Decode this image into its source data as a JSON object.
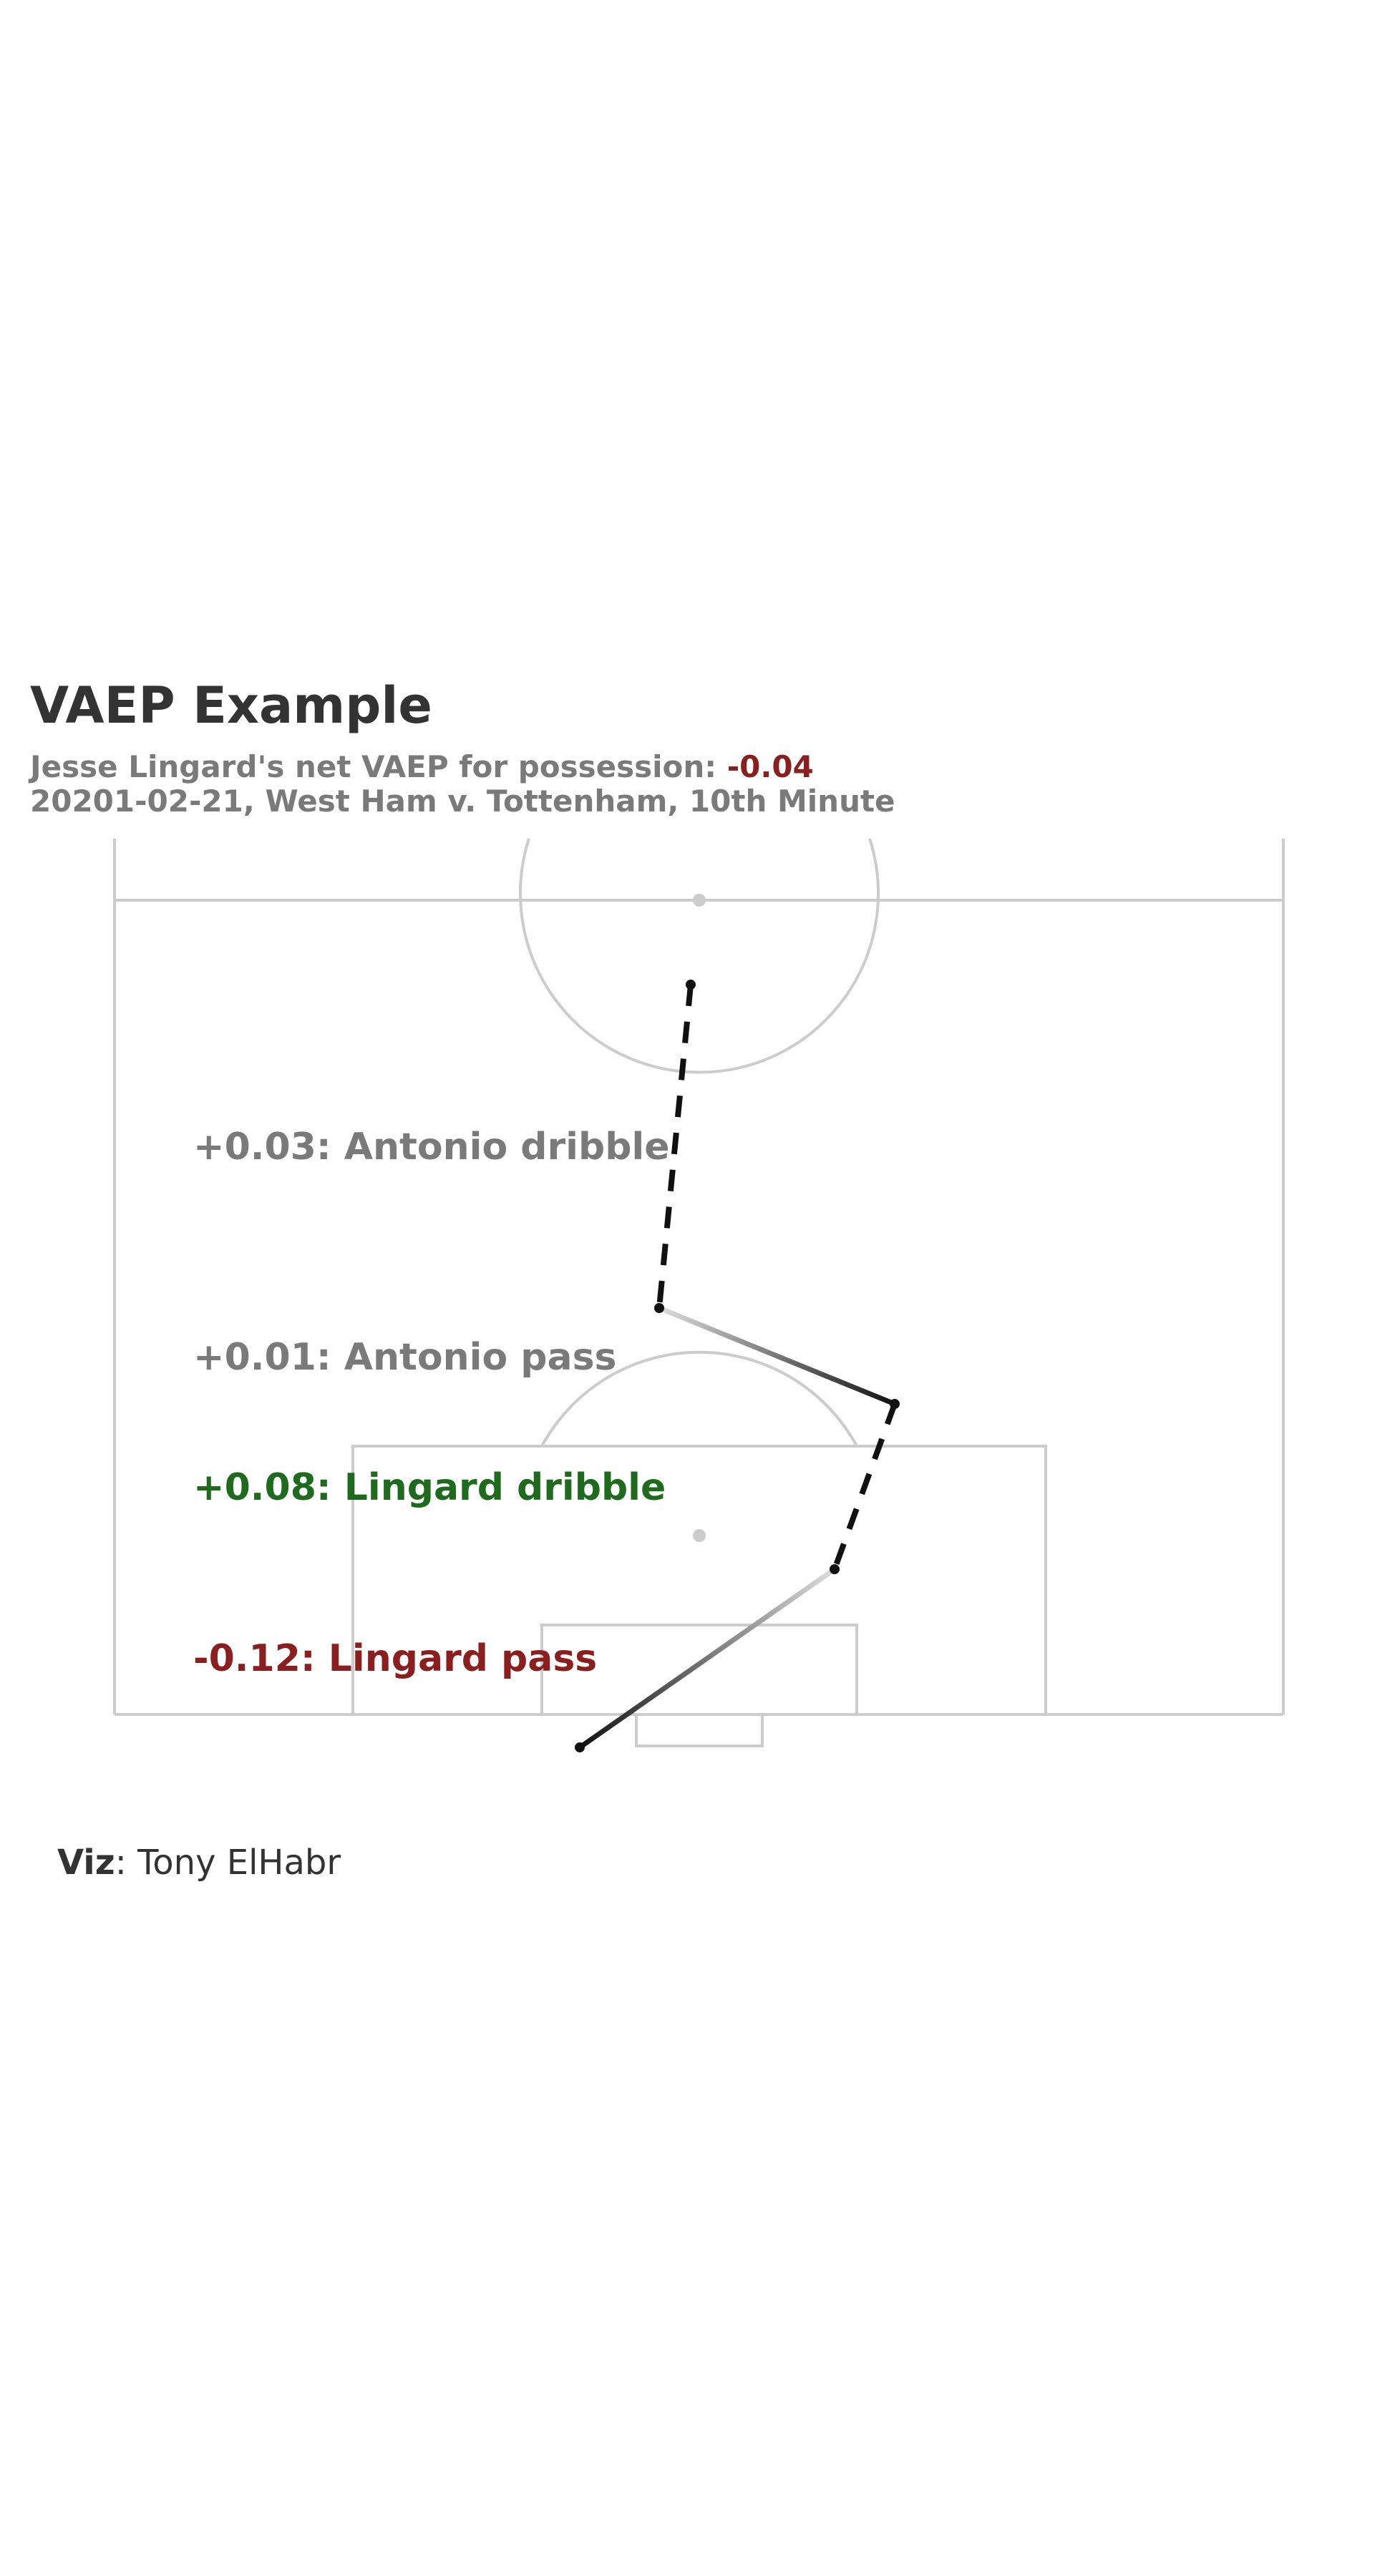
{
  "title": "VAEP Example",
  "subtitle": {
    "line1_prefix": "Jesse Lingard's net VAEP for possession: ",
    "line1_value": "-0.04",
    "line2": "20201-02-21, West Ham v. Tottenham, 10th Minute"
  },
  "annotations": [
    {
      "text": "+0.03: Antonio dribble",
      "color": "#7a7a7a"
    },
    {
      "text": "+0.01: Antonio pass",
      "color": "#7a7a7a"
    },
    {
      "text": "+0.08: Lingard dribble",
      "color": "#1e6b1e"
    },
    {
      "text": "-0.12: Lingard pass",
      "color": "#8b1e1e"
    }
  ],
  "colors": {
    "pitch_lines": "#cccccc",
    "positive": "#1e6b1e",
    "negative": "#8b1e1e",
    "neutral": "#7a7a7a",
    "actions": "#111111"
  },
  "caption": {
    "bold": "Viz",
    "rest": ": Tony ElHabr"
  }
}
